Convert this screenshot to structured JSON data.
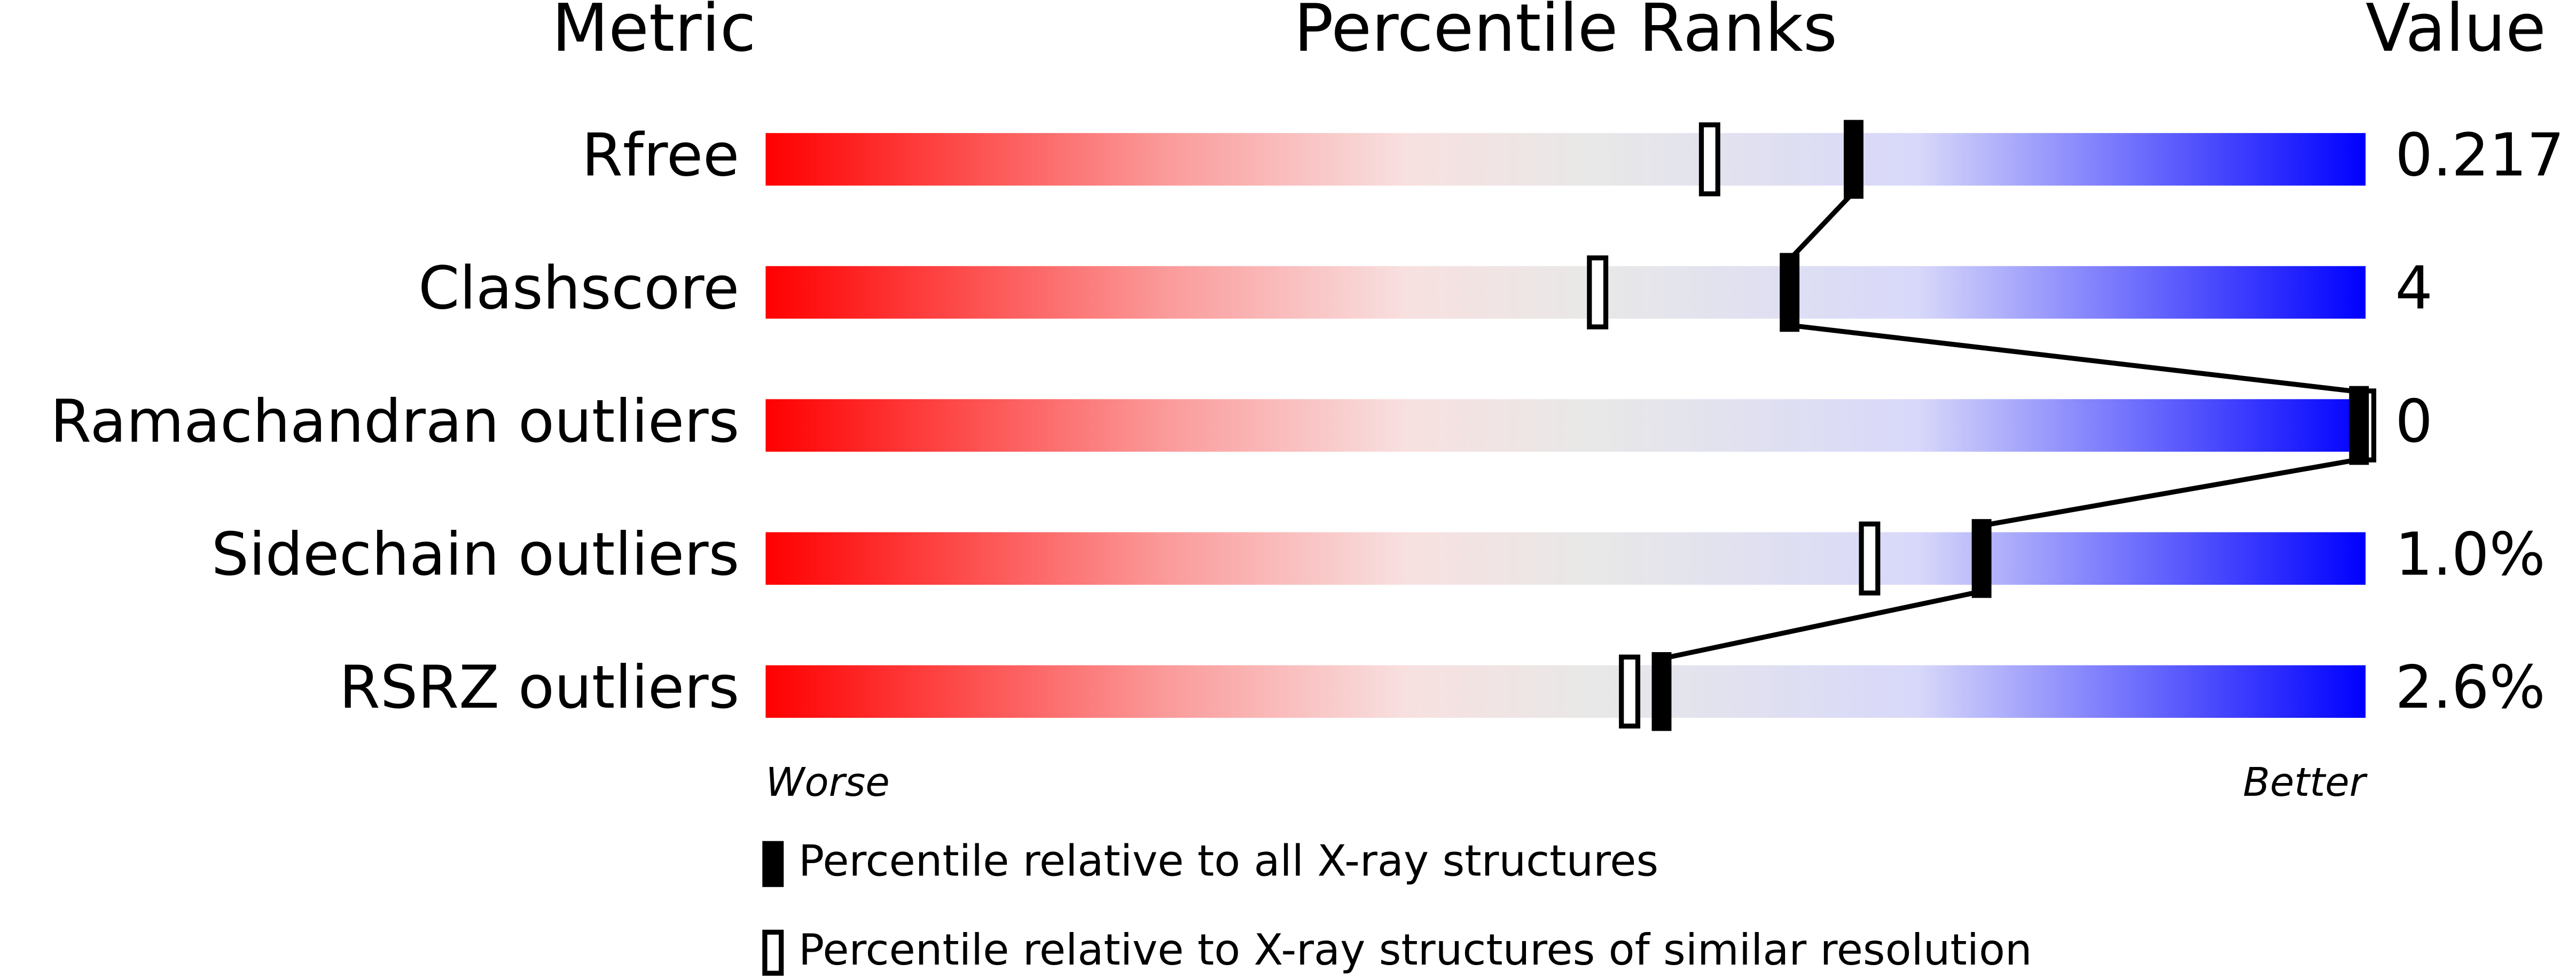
{
  "chart_data": {
    "type": "percentile-slider",
    "headers": {
      "metric": "Metric",
      "ranks": "Percentile Ranks",
      "value": "Value"
    },
    "categories": [
      "Rfree",
      "Clashscore",
      "Ramachandran outliers",
      "Sidechain outliers",
      "RSRZ outliers"
    ],
    "metric_values": [
      "0.217",
      "4",
      "0",
      "1.0%",
      "2.6%"
    ],
    "xlim": [
      0,
      100
    ],
    "series": [
      {
        "name": "Percentile relative to all X-ray structures",
        "color": "#000000",
        "values": [
          68,
          64,
          100,
          76,
          56
        ]
      },
      {
        "name": "Percentile relative to X-ray structures of similar resolution",
        "color": "#ffffff",
        "values": [
          59,
          52,
          100,
          69,
          54
        ]
      }
    ],
    "worse": "Worse",
    "better": "Better"
  }
}
